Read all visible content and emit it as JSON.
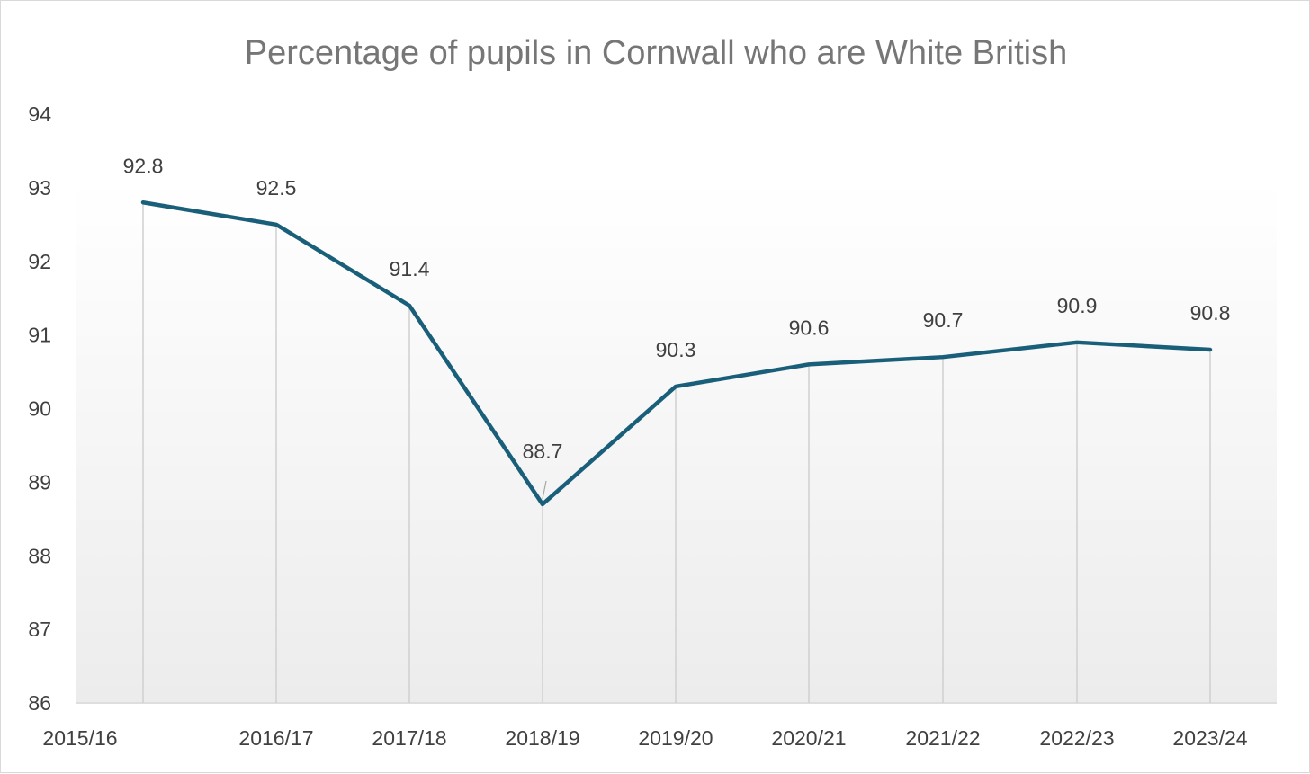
{
  "chart_data": {
    "type": "line",
    "title": "Percentage of pupils in Cornwall who are White British",
    "categories": [
      "2015/16",
      "2016/17",
      "2017/18",
      "2018/19",
      "2019/20",
      "2020/21",
      "2021/22",
      "2022/23",
      "2023/24"
    ],
    "series": [
      {
        "values": [
          92.8,
          92.5,
          91.4,
          88.7,
          90.3,
          90.6,
          90.7,
          90.9,
          90.8
        ],
        "color": "#1a5f7a"
      }
    ],
    "data_labels": [
      "92.8",
      "92.5",
      "91.4",
      "88.7",
      "90.3",
      "90.6",
      "90.7",
      "90.9",
      "90.8"
    ],
    "y_ticks": [
      "86",
      "87",
      "88",
      "89",
      "90",
      "91",
      "92",
      "93",
      "94"
    ],
    "ylim": [
      86,
      94
    ],
    "drop_lines": true,
    "grid": false,
    "legend": "none"
  }
}
